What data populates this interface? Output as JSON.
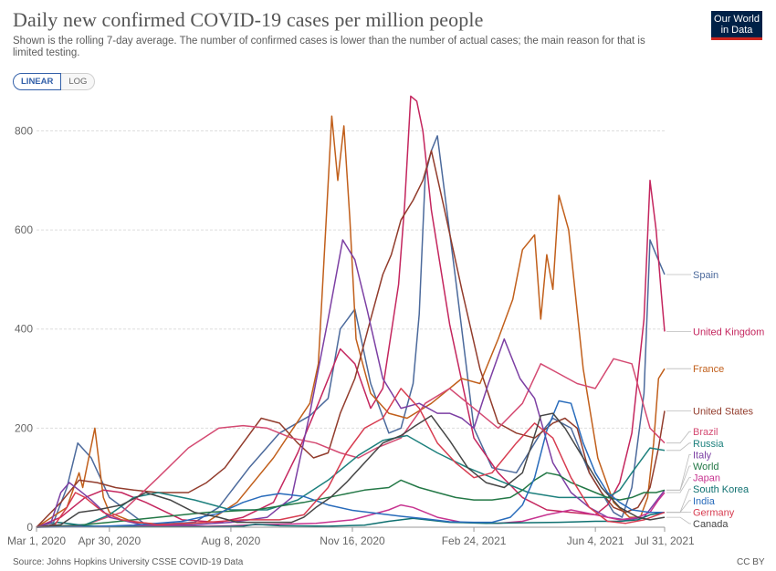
{
  "header": {
    "title": "Daily new confirmed COVID-19 cases per million people",
    "subtitle": "Shown is the rolling 7-day average. The number of confirmed cases is lower than the number of actual cases; the main reason for that is limited testing.",
    "logo_line1": "Our World",
    "logo_line2": "in Data"
  },
  "controls": {
    "linear_label": "LINEAR",
    "log_label": "LOG",
    "selected": "LINEAR"
  },
  "footer": {
    "source": "Source: Johns Hopkins University CSSE COVID-19 Data",
    "license": "CC BY"
  },
  "chart_data": {
    "type": "line",
    "title": "Daily new confirmed COVID-19 cases per million people",
    "xlabel": "",
    "ylabel": "",
    "ylim": [
      0,
      880
    ],
    "y_ticks": [
      0,
      200,
      400,
      600,
      800
    ],
    "x_ticks": [
      "Mar 1, 2020",
      "Apr 30, 2020",
      "Aug 8, 2020",
      "Nov 16, 2020",
      "Feb 24, 2021",
      "Jun 4, 2021",
      "Jul 31, 2021"
    ],
    "x_tick_days": [
      0,
      60,
      160,
      260,
      360,
      460,
      517
    ],
    "x_range_days": [
      0,
      517
    ],
    "grid": "horizontal dashed",
    "legend": "right end labels",
    "scale": "linear",
    "series": [
      {
        "name": "Spain",
        "color": "#4c6a9c",
        "x": [
          0,
          14,
          25,
          34,
          45,
          60,
          90,
          130,
          150,
          175,
          200,
          225,
          240,
          250,
          262,
          275,
          290,
          300,
          310,
          315,
          320,
          325,
          330,
          345,
          360,
          375,
          395,
          405,
          415,
          425,
          440,
          455,
          465,
          475,
          482,
          490,
          500,
          505,
          510,
          517
        ],
        "y": [
          0,
          10,
          80,
          170,
          140,
          60,
          5,
          10,
          40,
          120,
          190,
          225,
          260,
          400,
          440,
          290,
          190,
          200,
          290,
          430,
          710,
          760,
          790,
          500,
          200,
          120,
          110,
          150,
          190,
          220,
          200,
          110,
          70,
          30,
          20,
          80,
          270,
          580,
          550,
          510
        ]
      },
      {
        "name": "United Kingdom",
        "color": "#c4265e",
        "x": [
          0,
          20,
          40,
          55,
          70,
          90,
          120,
          150,
          170,
          195,
          215,
          232,
          250,
          262,
          275,
          285,
          298,
          303,
          308,
          313,
          318,
          325,
          340,
          360,
          380,
          400,
          420,
          440,
          460,
          470,
          480,
          490,
          500,
          505,
          510,
          514,
          517
        ],
        "y": [
          0,
          20,
          60,
          75,
          70,
          50,
          15,
          10,
          20,
          50,
          150,
          250,
          360,
          330,
          240,
          280,
          490,
          650,
          870,
          860,
          800,
          640,
          410,
          180,
          110,
          60,
          35,
          30,
          25,
          45,
          90,
          190,
          420,
          700,
          600,
          480,
          395
        ]
      },
      {
        "name": "France",
        "color": "#c15f1b",
        "x": [
          0,
          25,
          35,
          38,
          48,
          55,
          60,
          80,
          110,
          140,
          165,
          195,
          225,
          232,
          238,
          243,
          248,
          253,
          258,
          263,
          275,
          290,
          305,
          325,
          350,
          365,
          380,
          392,
          400,
          410,
          415,
          420,
          425,
          430,
          438,
          450,
          462,
          475,
          488,
          497,
          503,
          508,
          512,
          517
        ],
        "y": [
          0,
          40,
          110,
          80,
          200,
          60,
          30,
          10,
          5,
          10,
          50,
          140,
          250,
          330,
          600,
          830,
          700,
          810,
          620,
          380,
          270,
          230,
          220,
          250,
          300,
          290,
          380,
          460,
          560,
          590,
          420,
          550,
          480,
          670,
          600,
          320,
          140,
          50,
          20,
          20,
          60,
          170,
          300,
          320
        ]
      },
      {
        "name": "United States",
        "color": "#923c2c",
        "x": [
          0,
          20,
          35,
          50,
          65,
          80,
          100,
          125,
          140,
          155,
          170,
          185,
          200,
          215,
          228,
          240,
          250,
          262,
          275,
          285,
          292,
          300,
          310,
          318,
          325,
          335,
          350,
          365,
          380,
          395,
          410,
          425,
          435,
          445,
          455,
          465,
          475,
          485,
          495,
          505,
          512,
          517
        ],
        "y": [
          0,
          50,
          95,
          90,
          80,
          75,
          70,
          70,
          90,
          120,
          170,
          220,
          210,
          170,
          140,
          150,
          230,
          300,
          420,
          510,
          550,
          620,
          660,
          700,
          760,
          650,
          480,
          320,
          210,
          190,
          180,
          210,
          220,
          200,
          110,
          70,
          40,
          30,
          40,
          80,
          160,
          235
        ]
      },
      {
        "name": "Brazil",
        "color": "#d44a72",
        "x": [
          0,
          40,
          70,
          100,
          125,
          150,
          170,
          190,
          210,
          230,
          250,
          265,
          280,
          300,
          320,
          340,
          360,
          380,
          400,
          415,
          430,
          445,
          460,
          475,
          490,
          505,
          517
        ],
        "y": [
          0,
          5,
          30,
          100,
          160,
          200,
          205,
          200,
          180,
          170,
          150,
          140,
          160,
          180,
          250,
          280,
          240,
          200,
          250,
          330,
          310,
          290,
          280,
          340,
          330,
          200,
          170
        ]
      },
      {
        "name": "Russia",
        "color": "#1d807d",
        "x": [
          0,
          40,
          60,
          80,
          100,
          130,
          160,
          190,
          215,
          240,
          265,
          285,
          305,
          330,
          355,
          380,
          405,
          430,
          450,
          470,
          480,
          490,
          505,
          517
        ],
        "y": [
          0,
          5,
          25,
          60,
          70,
          55,
          35,
          35,
          55,
          95,
          145,
          175,
          185,
          150,
          120,
          95,
          70,
          60,
          60,
          60,
          75,
          110,
          160,
          155
        ]
      },
      {
        "name": "Italy",
        "color": "#7c3fa3",
        "x": [
          0,
          12,
          20,
          27,
          35,
          45,
          60,
          90,
          130,
          160,
          190,
          210,
          225,
          240,
          252,
          262,
          272,
          285,
          300,
          315,
          330,
          340,
          350,
          360,
          372,
          385,
          398,
          410,
          425,
          440,
          455,
          470,
          485,
          500,
          517
        ],
        "y": [
          0,
          10,
          70,
          90,
          75,
          55,
          20,
          3,
          5,
          10,
          20,
          60,
          230,
          420,
          580,
          540,
          440,
          300,
          240,
          250,
          230,
          230,
          220,
          200,
          290,
          380,
          300,
          260,
          130,
          70,
          40,
          20,
          15,
          20,
          75
        ]
      },
      {
        "name": "World",
        "color": "#237846",
        "x": [
          0,
          30,
          60,
          100,
          140,
          180,
          220,
          250,
          270,
          290,
          300,
          315,
          330,
          345,
          360,
          375,
          390,
          400,
          410,
          420,
          430,
          440,
          450,
          460,
          470,
          480,
          490,
          500,
          510,
          517
        ],
        "y": [
          0,
          3,
          10,
          20,
          30,
          35,
          50,
          65,
          75,
          80,
          95,
          80,
          70,
          60,
          55,
          55,
          60,
          75,
          95,
          110,
          105,
          90,
          80,
          70,
          60,
          55,
          60,
          70,
          70,
          75
        ]
      },
      {
        "name": "Japan",
        "color": "#c73490",
        "x": [
          0,
          50,
          100,
          140,
          160,
          180,
          200,
          230,
          260,
          290,
          300,
          310,
          330,
          350,
          380,
          400,
          420,
          440,
          460,
          480,
          495,
          505,
          512,
          517
        ],
        "y": [
          0,
          2,
          3,
          2,
          3,
          5,
          6,
          8,
          15,
          35,
          45,
          40,
          20,
          10,
          8,
          12,
          25,
          35,
          25,
          15,
          20,
          30,
          55,
          70
        ]
      },
      {
        "name": "South Korea",
        "color": "#0f7070",
        "x": [
          0,
          10,
          17,
          25,
          40,
          60,
          100,
          140,
          170,
          180,
          200,
          240,
          270,
          290,
          310,
          340,
          370,
          400,
          430,
          460,
          480,
          495,
          505,
          517
        ],
        "y": [
          0,
          3,
          10,
          8,
          3,
          1,
          1,
          1,
          2,
          6,
          3,
          2,
          4,
          12,
          18,
          10,
          8,
          9,
          10,
          12,
          12,
          15,
          25,
          30
        ]
      },
      {
        "name": "India",
        "color": "#286bbb",
        "x": [
          0,
          40,
          80,
          120,
          150,
          170,
          185,
          200,
          220,
          240,
          260,
          280,
          300,
          320,
          340,
          360,
          375,
          390,
          400,
          410,
          420,
          430,
          440,
          450,
          460,
          470,
          480,
          490,
          505,
          517
        ],
        "y": [
          0,
          1,
          4,
          12,
          28,
          50,
          62,
          68,
          62,
          45,
          34,
          28,
          22,
          17,
          11,
          10,
          10,
          20,
          45,
          100,
          195,
          255,
          250,
          170,
          110,
          70,
          50,
          35,
          30,
          30
        ]
      },
      {
        "name": "Germany",
        "color": "#d73c50",
        "x": [
          0,
          15,
          25,
          32,
          40,
          55,
          70,
          100,
          140,
          170,
          200,
          220,
          240,
          255,
          270,
          285,
          300,
          315,
          330,
          345,
          360,
          375,
          395,
          410,
          425,
          440,
          455,
          470,
          485,
          500,
          517
        ],
        "y": [
          0,
          5,
          40,
          70,
          60,
          30,
          15,
          5,
          10,
          15,
          15,
          25,
          80,
          150,
          200,
          220,
          280,
          240,
          170,
          130,
          100,
          110,
          170,
          210,
          180,
          100,
          40,
          12,
          8,
          15,
          30
        ]
      },
      {
        "name": "Canada",
        "color": "#464646",
        "x": [
          0,
          20,
          35,
          50,
          70,
          90,
          110,
          130,
          150,
          165,
          190,
          210,
          220,
          230,
          242,
          255,
          270,
          285,
          300,
          312,
          325,
          340,
          355,
          370,
          385,
          400,
          408,
          415,
          425,
          435,
          450,
          465,
          480,
          495,
          505,
          517
        ],
        "y": [
          0,
          5,
          30,
          35,
          45,
          70,
          55,
          30,
          20,
          10,
          10,
          10,
          20,
          40,
          60,
          90,
          130,
          170,
          185,
          205,
          225,
          175,
          120,
          90,
          80,
          110,
          170,
          225,
          230,
          200,
          140,
          80,
          40,
          20,
          15,
          20
        ]
      }
    ]
  }
}
